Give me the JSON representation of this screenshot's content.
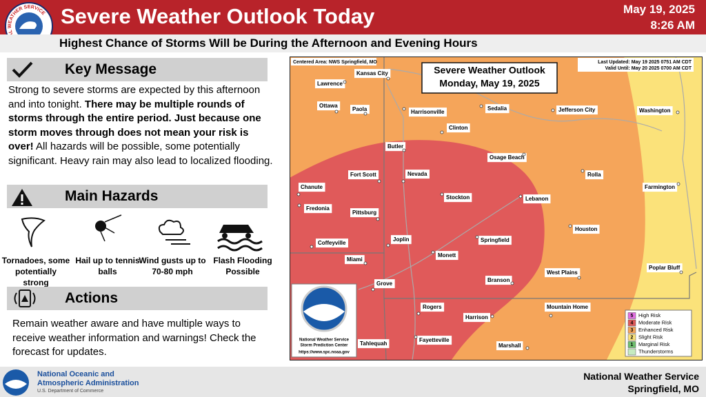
{
  "header": {
    "title": "Severe Weather Outlook Today",
    "date": "May 19, 2025",
    "time": "8:26 AM",
    "subtitle": "Highest Chance of Storms Will be During the Afternoon and Evening Hours",
    "logo_text": "NATIONAL WEATHER SERVICE"
  },
  "key_message": {
    "heading": "Key Message",
    "runs": [
      {
        "text": "Strong to severe storms are expected by this afternoon and into tonight. ",
        "bold": false
      },
      {
        "text": "There may be multiple rounds of storms through the entire period. Just because one storm moves through does not mean your risk is over!",
        "bold": true
      },
      {
        "text": " All hazards will be possible, some potentially significant. Heavy rain may also lead to localized flooding.",
        "bold": false
      }
    ]
  },
  "hazards": {
    "heading": "Main Hazards",
    "items": [
      "Tornadoes, some potentially strong",
      "Hail up to tennis balls",
      "Wind gusts up to 70-80 mph",
      "Flash Flooding Possible"
    ]
  },
  "actions": {
    "heading": "Actions",
    "text": "Remain weather aware and have multiple ways to receive weather information and warnings! Check the forecast for updates."
  },
  "map": {
    "title": "Severe Weather Outlook",
    "subtitle": "Monday, May 19, 2025",
    "centered": "Centered Area: NWS Springfield, MO",
    "updated": "Last Updated: May 19 2025 0751 AM CDT",
    "valid": "Valid Until: May 20 2025 0700 AM CDT",
    "cities": [
      "Kansas City",
      "Lawrence",
      "Ottawa",
      "Paola",
      "Harrisonville",
      "Sedalia",
      "Jefferson City",
      "Washington",
      "Clinton",
      "Butler",
      "Osage Beach",
      "Fort Scott",
      "Nevada",
      "Rolla",
      "Chanute",
      "Farmington",
      "Stockton",
      "Lebanon",
      "Fredonia",
      "Pittsburg",
      "Houston",
      "Joplin",
      "Springfield",
      "Coffeyville",
      "Monett",
      "Miami",
      "Poplar Bluff",
      "West Plains",
      "Branson",
      "Grove",
      "Mountain Home",
      "Rogers",
      "Harrison",
      "Fayetteville",
      "Tahlequah",
      "Marshall"
    ],
    "legend": [
      {
        "level": 5,
        "label": "High Risk",
        "color": "#e36fe3"
      },
      {
        "level": 4,
        "label": "Moderate Risk",
        "color": "#e05a5a"
      },
      {
        "level": 3,
        "label": "Enhanced Risk",
        "color": "#f5a55a"
      },
      {
        "level": 2,
        "label": "Slight Risk",
        "color": "#fbe27a"
      },
      {
        "level": 1,
        "label": "Marginal Risk",
        "color": "#6fbf6f"
      },
      {
        "label": "Thunderstorms",
        "color": "#c6ebc0"
      }
    ],
    "badge": [
      "National Weather Service",
      "Storm Prediction Center",
      "https://www.spc.noaa.gov"
    ]
  },
  "footer": {
    "agency_line1": "National Oceanic and",
    "agency_line2": "Atmospheric Administration",
    "department": "U.S. Department of Commerce",
    "office": "National Weather Service",
    "location": "Springfield, MO"
  }
}
